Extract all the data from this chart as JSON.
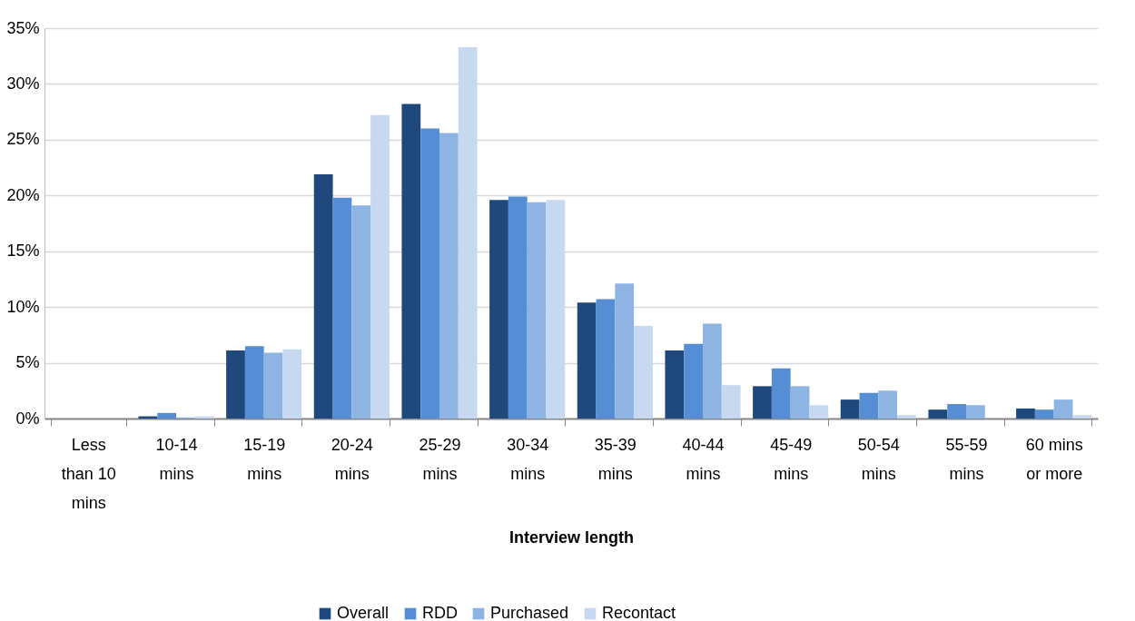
{
  "chart_data": {
    "type": "bar",
    "xlabel": "Interview length",
    "categories": [
      "Less than 10 mins",
      "10-14 mins",
      "15-19 mins",
      "20-24 mins",
      "25-29 mins",
      "30-34 mins",
      "35-39 mins",
      "40-44 mins",
      "45-49 mins",
      "50-54 mins",
      "55-59 mins",
      "60 mins or more"
    ],
    "series": [
      {
        "name": "Overall",
        "color": "#1f497d",
        "values": [
          0,
          0.2,
          6.1,
          21.9,
          28.2,
          19.6,
          10.4,
          6.1,
          2.9,
          1.7,
          0.8,
          0.9
        ]
      },
      {
        "name": "RDD",
        "color": "#558ed5",
        "values": [
          0,
          0.5,
          6.5,
          19.8,
          26.0,
          19.9,
          10.7,
          6.7,
          4.5,
          2.3,
          1.3,
          0.8
        ]
      },
      {
        "name": "Purchased",
        "color": "#8eb4e3",
        "values": [
          0,
          0.1,
          5.9,
          19.1,
          25.6,
          19.4,
          12.1,
          8.5,
          2.9,
          2.5,
          1.2,
          1.7
        ]
      },
      {
        "name": "Recontact",
        "color": "#c6d9f1",
        "values": [
          0,
          0.2,
          6.2,
          27.2,
          33.3,
          19.6,
          8.3,
          3.0,
          1.2,
          0.3,
          0,
          0.3
        ]
      }
    ],
    "ylim": [
      0,
      35
    ],
    "yticks": [
      {
        "value": 0,
        "label": "0%"
      },
      {
        "value": 5,
        "label": "5%"
      },
      {
        "value": 10,
        "label": "10%"
      },
      {
        "value": 15,
        "label": "15%"
      },
      {
        "value": 20,
        "label": "20%"
      },
      {
        "value": 25,
        "label": "25%"
      },
      {
        "value": 30,
        "label": "30%"
      },
      {
        "value": 35,
        "label": "35%"
      }
    ],
    "grid": "y",
    "legend": "bottom"
  }
}
